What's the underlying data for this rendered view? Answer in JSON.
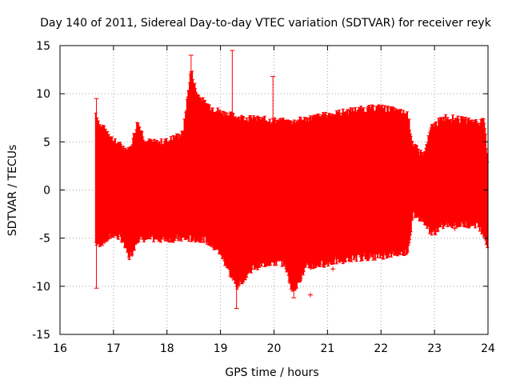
{
  "chart_data": {
    "type": "line",
    "title": "Day 140 of 2011, Sidereal Day-to-day VTEC variation (SDTVAR) for receiver reyk",
    "xlabel": "GPS time / hours",
    "ylabel": "SDTVAR / TECUs",
    "xlim": [
      16,
      24
    ],
    "ylim": [
      -15,
      15
    ],
    "xticks": [
      16,
      17,
      18,
      19,
      20,
      21,
      22,
      23,
      24
    ],
    "yticks": [
      -15,
      -10,
      -5,
      0,
      5,
      10,
      15
    ],
    "grid": true,
    "series_color": "#ff0000",
    "series": [
      {
        "name": "SDTVAR",
        "style": "error-bars (red vertical bars with caps)",
        "envelope": [
          {
            "x": 16.67,
            "low": -5.5,
            "high": 8.0
          },
          {
            "x": 16.75,
            "low": -5.5,
            "high": 6.5
          },
          {
            "x": 16.9,
            "low": -5.0,
            "high": 6.0
          },
          {
            "x": 17.0,
            "low": -4.5,
            "high": 5.0
          },
          {
            "x": 17.15,
            "low": -5.0,
            "high": 4.5
          },
          {
            "x": 17.3,
            "low": -7.0,
            "high": 4.0
          },
          {
            "x": 17.45,
            "low": -5.0,
            "high": 7.0
          },
          {
            "x": 17.6,
            "low": -5.0,
            "high": 5.0
          },
          {
            "x": 17.8,
            "low": -5.0,
            "high": 4.8
          },
          {
            "x": 18.0,
            "low": -5.0,
            "high": 5.0
          },
          {
            "x": 18.3,
            "low": -5.0,
            "high": 5.8
          },
          {
            "x": 18.45,
            "low": -5.0,
            "high": 12.5
          },
          {
            "x": 18.55,
            "low": -5.0,
            "high": 10.0
          },
          {
            "x": 18.7,
            "low": -5.0,
            "high": 9.0
          },
          {
            "x": 19.0,
            "low": -6.5,
            "high": 8.0
          },
          {
            "x": 19.3,
            "low": -10.0,
            "high": 7.5
          },
          {
            "x": 19.6,
            "low": -8.0,
            "high": 7.3
          },
          {
            "x": 19.9,
            "low": -7.5,
            "high": 7.2
          },
          {
            "x": 20.2,
            "low": -7.5,
            "high": 7.0
          },
          {
            "x": 20.35,
            "low": -10.5,
            "high": 7.0
          },
          {
            "x": 20.6,
            "low": -8.0,
            "high": 7.3
          },
          {
            "x": 21.0,
            "low": -7.5,
            "high": 7.7
          },
          {
            "x": 21.5,
            "low": -7.0,
            "high": 8.2
          },
          {
            "x": 22.0,
            "low": -6.8,
            "high": 8.5
          },
          {
            "x": 22.5,
            "low": -6.3,
            "high": 7.8
          },
          {
            "x": 22.6,
            "low": -2.5,
            "high": 4.5
          },
          {
            "x": 22.8,
            "low": -3.0,
            "high": 3.5
          },
          {
            "x": 22.95,
            "low": -4.5,
            "high": 6.5
          },
          {
            "x": 23.2,
            "low": -3.5,
            "high": 7.5
          },
          {
            "x": 23.5,
            "low": -3.5,
            "high": 7.2
          },
          {
            "x": 23.8,
            "low": -3.5,
            "high": 7.0
          },
          {
            "x": 23.93,
            "low": -4.5,
            "high": 7.0
          },
          {
            "x": 24.0,
            "low": -6.0,
            "high": 2.5
          }
        ],
        "spikes": [
          {
            "x": 16.68,
            "low": -10.2,
            "high": 9.5
          },
          {
            "x": 18.45,
            "low": -4.0,
            "high": 14.0
          },
          {
            "x": 19.22,
            "low": -5.0,
            "high": 14.5
          },
          {
            "x": 19.3,
            "low": -12.3,
            "high": -8.0
          },
          {
            "x": 19.98,
            "low": -7.0,
            "high": 11.8
          },
          {
            "x": 20.37,
            "low": -11.2,
            "high": -7.0
          },
          {
            "x": 20.68,
            "low": -10.9,
            "high": -10.9
          },
          {
            "x": 21.1,
            "low": -8.2,
            "high": -8.2
          },
          {
            "x": 23.38,
            "low": -4.0,
            "high": -4.0
          }
        ]
      }
    ]
  }
}
